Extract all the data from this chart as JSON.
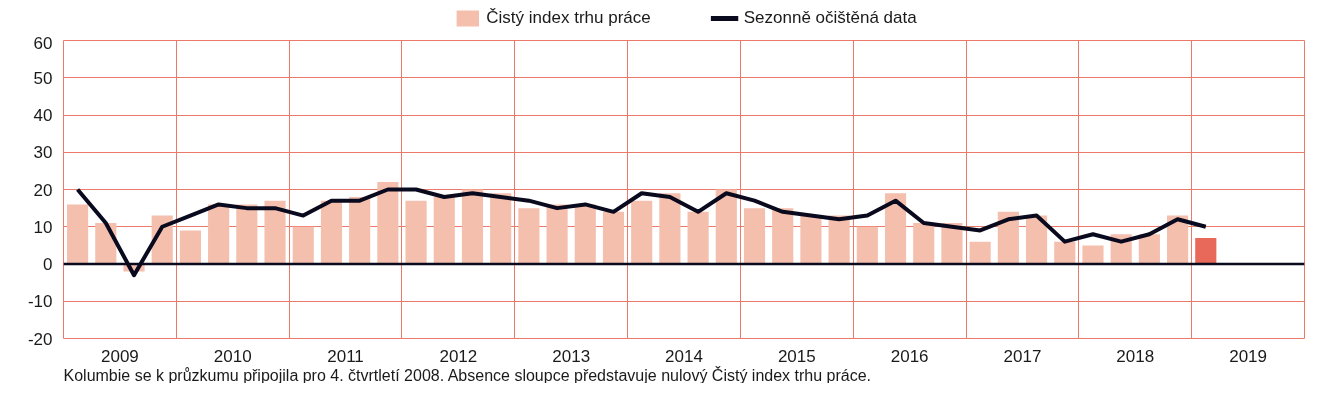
{
  "chart_data": {
    "type": "bar",
    "x": [
      2009.0,
      2009.25,
      2009.5,
      2009.75,
      2010.0,
      2010.25,
      2010.5,
      2010.75,
      2011.0,
      2011.25,
      2011.5,
      2011.75,
      2012.0,
      2012.25,
      2012.5,
      2012.75,
      2013.0,
      2013.25,
      2013.5,
      2013.75,
      2014.0,
      2014.25,
      2014.5,
      2014.75,
      2015.0,
      2015.25,
      2015.5,
      2015.75,
      2016.0,
      2016.25,
      2016.5,
      2016.75,
      2017.0,
      2017.25,
      2017.5,
      2017.75,
      2018.0,
      2018.25,
      2018.5,
      2018.75,
      2019.0
    ],
    "series": [
      {
        "name": "Čistý index trhu práce",
        "color": "#f5bfae",
        "colors": [
          "#f5bfae",
          "#f5bfae",
          "#f5bfae",
          "#f5bfae",
          "#f5bfae",
          "#f5bfae",
          "#f5bfae",
          "#f5bfae",
          "#f5bfae",
          "#f5bfae",
          "#f5bfae",
          "#f5bfae",
          "#f5bfae",
          "#f5bfae",
          "#f5bfae",
          "#f5bfae",
          "#f5bfae",
          "#f5bfae",
          "#f5bfae",
          "#f5bfae",
          "#f5bfae",
          "#f5bfae",
          "#f5bfae",
          "#f5bfae",
          "#f5bfae",
          "#f5bfae",
          "#f5bfae",
          "#f5bfae",
          "#f5bfae",
          "#f5bfae",
          "#f5bfae",
          "#f5bfae",
          "#f5bfae",
          "#f5bfae",
          "#f5bfae",
          "#f5bfae",
          "#f5bfae",
          "#f5bfae",
          "#f5bfae",
          "#f5bfae",
          "#e8695a"
        ],
        "values": [
          16,
          11,
          -2,
          13,
          9,
          16,
          16,
          17,
          10,
          17,
          18,
          22,
          17,
          18,
          20,
          19,
          15,
          16,
          16,
          14,
          17,
          19,
          14,
          20,
          15,
          15,
          13,
          13,
          10,
          19,
          11,
          11,
          6,
          14,
          13,
          6,
          5,
          8,
          8,
          13,
          7
        ]
      },
      {
        "name": "Sezonně očištěná data",
        "type": "line",
        "color": "#0a0a1e",
        "values": [
          20,
          11,
          -3,
          10,
          13,
          16,
          15,
          15,
          13,
          17,
          17,
          20,
          20,
          18,
          19,
          18,
          17,
          15,
          16,
          14,
          19,
          18,
          14,
          19,
          17,
          14,
          13,
          12,
          13,
          17,
          11,
          10,
          9,
          12,
          13,
          6,
          8,
          6,
          8,
          12,
          10
        ]
      }
    ],
    "xlim": [
      2008.875,
      2019.875
    ],
    "xticks": [
      {
        "value": 2008.875,
        "label": null
      },
      {
        "value": 2009.375,
        "label": "2009"
      },
      {
        "value": 2009.875,
        "label": null
      },
      {
        "value": 2010.375,
        "label": "2010"
      },
      {
        "value": 2010.875,
        "label": null
      },
      {
        "value": 2011.375,
        "label": "2011"
      },
      {
        "value": 2011.875,
        "label": null
      },
      {
        "value": 2012.375,
        "label": "2012"
      },
      {
        "value": 2012.875,
        "label": null
      },
      {
        "value": 2013.375,
        "label": "2013"
      },
      {
        "value": 2013.875,
        "label": null
      },
      {
        "value": 2014.375,
        "label": "2014"
      },
      {
        "value": 2014.875,
        "label": null
      },
      {
        "value": 2015.375,
        "label": "2015"
      },
      {
        "value": 2015.875,
        "label": null
      },
      {
        "value": 2016.375,
        "label": "2016"
      },
      {
        "value": 2016.875,
        "label": null
      },
      {
        "value": 2017.375,
        "label": "2017"
      },
      {
        "value": 2017.875,
        "label": null
      },
      {
        "value": 2018.375,
        "label": "2018"
      },
      {
        "value": 2018.875,
        "label": null
      },
      {
        "value": 2019.375,
        "label": "2019"
      },
      {
        "value": 2019.875,
        "label": null
      }
    ],
    "ylim": [
      -20,
      60
    ],
    "yticks": [
      -20,
      -10,
      0,
      10,
      20,
      30,
      40,
      50,
      60
    ],
    "grid": true,
    "legend": "top",
    "ref_lines": [
      {
        "axis": "y",
        "value": 0,
        "color": "#0a0a1e"
      }
    ],
    "annotations": [
      "Kolumbie se k průzkumu připojila pro 4. čtvrtletí 2008. Absence sloupce představuje nulový Čistý index trhu práce."
    ]
  }
}
